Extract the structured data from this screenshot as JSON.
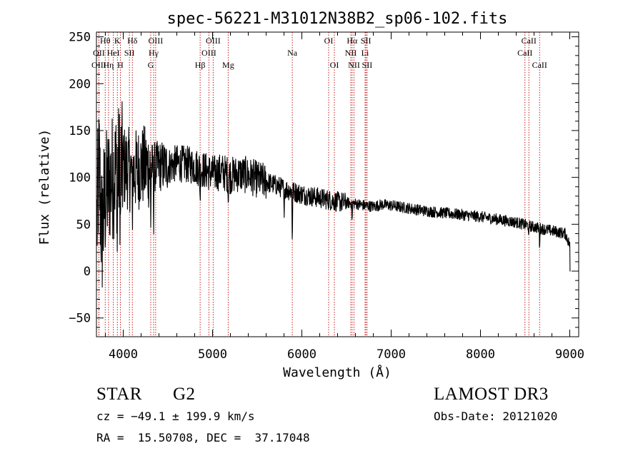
{
  "chart_data": {
    "type": "line",
    "title": "spec-56221-M31012N38B2_sp06-102.fits",
    "xlabel": "Wavelength (Å)",
    "ylabel": "Flux (relative)",
    "xlim": [
      3700,
      9100
    ],
    "ylim": [
      -70,
      255
    ],
    "xticks": [
      4000,
      5000,
      6000,
      7000,
      8000,
      9000
    ],
    "yticks": [
      -50,
      0,
      50,
      100,
      150,
      200,
      250
    ],
    "xtick_labels": [
      "4000",
      "5000",
      "6000",
      "7000",
      "8000",
      "9000"
    ],
    "ytick_labels": [
      "−50",
      "0",
      "50",
      "100",
      "150",
      "200",
      "250"
    ],
    "spectrum_anchors": [
      [
        3700,
        40
      ],
      [
        3730,
        110
      ],
      [
        3760,
        40
      ],
      [
        3800,
        80
      ],
      [
        3850,
        95
      ],
      [
        3900,
        105
      ],
      [
        3950,
        110
      ],
      [
        4000,
        112
      ],
      [
        4050,
        110
      ],
      [
        4100,
        105
      ],
      [
        4150,
        108
      ],
      [
        4200,
        112
      ],
      [
        4300,
        110
      ],
      [
        4400,
        112
      ],
      [
        4500,
        112
      ],
      [
        4600,
        115
      ],
      [
        4700,
        114
      ],
      [
        4800,
        112
      ],
      [
        4900,
        108
      ],
      [
        5000,
        104
      ],
      [
        5100,
        106
      ],
      [
        5200,
        102
      ],
      [
        5300,
        104
      ],
      [
        5400,
        102
      ],
      [
        5500,
        98
      ],
      [
        5600,
        95
      ],
      [
        5700,
        92
      ],
      [
        5800,
        88
      ],
      [
        5900,
        85
      ],
      [
        6000,
        82
      ],
      [
        6100,
        80
      ],
      [
        6200,
        78
      ],
      [
        6300,
        76
      ],
      [
        6400,
        74
      ],
      [
        6500,
        73
      ],
      [
        6600,
        72
      ],
      [
        6700,
        70
      ],
      [
        6800,
        69
      ],
      [
        6900,
        71
      ],
      [
        7000,
        70
      ],
      [
        7200,
        67
      ],
      [
        7400,
        64
      ],
      [
        7600,
        62
      ],
      [
        7800,
        60
      ],
      [
        8000,
        58
      ],
      [
        8200,
        55
      ],
      [
        8400,
        52
      ],
      [
        8600,
        47
      ],
      [
        8800,
        43
      ],
      [
        8950,
        40
      ],
      [
        9000,
        28
      ],
      [
        9010,
        0
      ]
    ],
    "absorption_features": [
      {
        "wavelength": 3933,
        "depth": 80
      },
      {
        "wavelength": 3968,
        "depth": 85
      },
      {
        "wavelength": 4101,
        "depth": 55
      },
      {
        "wavelength": 4308,
        "depth": 55
      },
      {
        "wavelength": 4340,
        "depth": 55
      },
      {
        "wavelength": 4861,
        "depth": 35
      },
      {
        "wavelength": 5175,
        "depth": 25
      },
      {
        "wavelength": 5800,
        "depth": 30
      },
      {
        "wavelength": 5893,
        "depth": 55
      },
      {
        "wavelength": 6563,
        "depth": 20
      },
      {
        "wavelength": 8542,
        "depth": 15
      },
      {
        "wavelength": 8662,
        "depth": 20
      }
    ],
    "lines": [
      {
        "label": "Hθ",
        "wavelength": 3798,
        "row": 1
      },
      {
        "label": "OII",
        "wavelength": 3727,
        "row": 2
      },
      {
        "label": "OIII",
        "wavelength": 3727,
        "row": 3
      },
      {
        "label": "Hη",
        "wavelength": 3835,
        "row": 3
      },
      {
        "label": "K",
        "wavelength": 3934,
        "row": 1
      },
      {
        "label": "HeI",
        "wavelength": 3889,
        "row": 2
      },
      {
        "label": "H",
        "wavelength": 3968,
        "row": 3
      },
      {
        "label": "SII",
        "wavelength": 4069,
        "row": 2
      },
      {
        "label": "Hδ",
        "wavelength": 4102,
        "row": 1
      },
      {
        "label": "OIII",
        "wavelength": 4363,
        "row": 1
      },
      {
        "label": "Hγ",
        "wavelength": 4340,
        "row": 2
      },
      {
        "label": "G",
        "wavelength": 4308,
        "row": 3
      },
      {
        "label": "OIII",
        "wavelength": 5007,
        "row": 1
      },
      {
        "label": "OIII",
        "wavelength": 4959,
        "row": 2
      },
      {
        "label": "Hβ",
        "wavelength": 4861,
        "row": 3
      },
      {
        "label": "Mg",
        "wavelength": 5175,
        "row": 3
      },
      {
        "label": "Na",
        "wavelength": 5893,
        "row": 2
      },
      {
        "label": "OI",
        "wavelength": 6300,
        "row": 1
      },
      {
        "label": "OI",
        "wavelength": 6364,
        "row": 3
      },
      {
        "label": "Hα",
        "wavelength": 6563,
        "row": 1
      },
      {
        "label": "NII",
        "wavelength": 6548,
        "row": 2
      },
      {
        "label": "NII",
        "wavelength": 6584,
        "row": 3
      },
      {
        "label": "SII",
        "wavelength": 6717,
        "row": 1
      },
      {
        "label": "Li",
        "wavelength": 6708,
        "row": 2
      },
      {
        "label": "SII",
        "wavelength": 6731,
        "row": 3
      },
      {
        "label": "CaII",
        "wavelength": 8542,
        "row": 1
      },
      {
        "label": "CaII",
        "wavelength": 8498,
        "row": 2
      },
      {
        "label": "CaII",
        "wavelength": 8662,
        "row": 3
      }
    ],
    "colors": {
      "spectrum": "#000000",
      "line_marker": "#c00000",
      "axes": "#000000"
    }
  },
  "info": {
    "object_class": "STAR",
    "subclass": "G2",
    "survey": "LAMOST DR3",
    "cz": "cz = −49.1 ± 199.9 km/s",
    "obs_date": "Obs-Date: 20121020",
    "coords": "RA =  15.50708, DEC =  37.17048"
  }
}
